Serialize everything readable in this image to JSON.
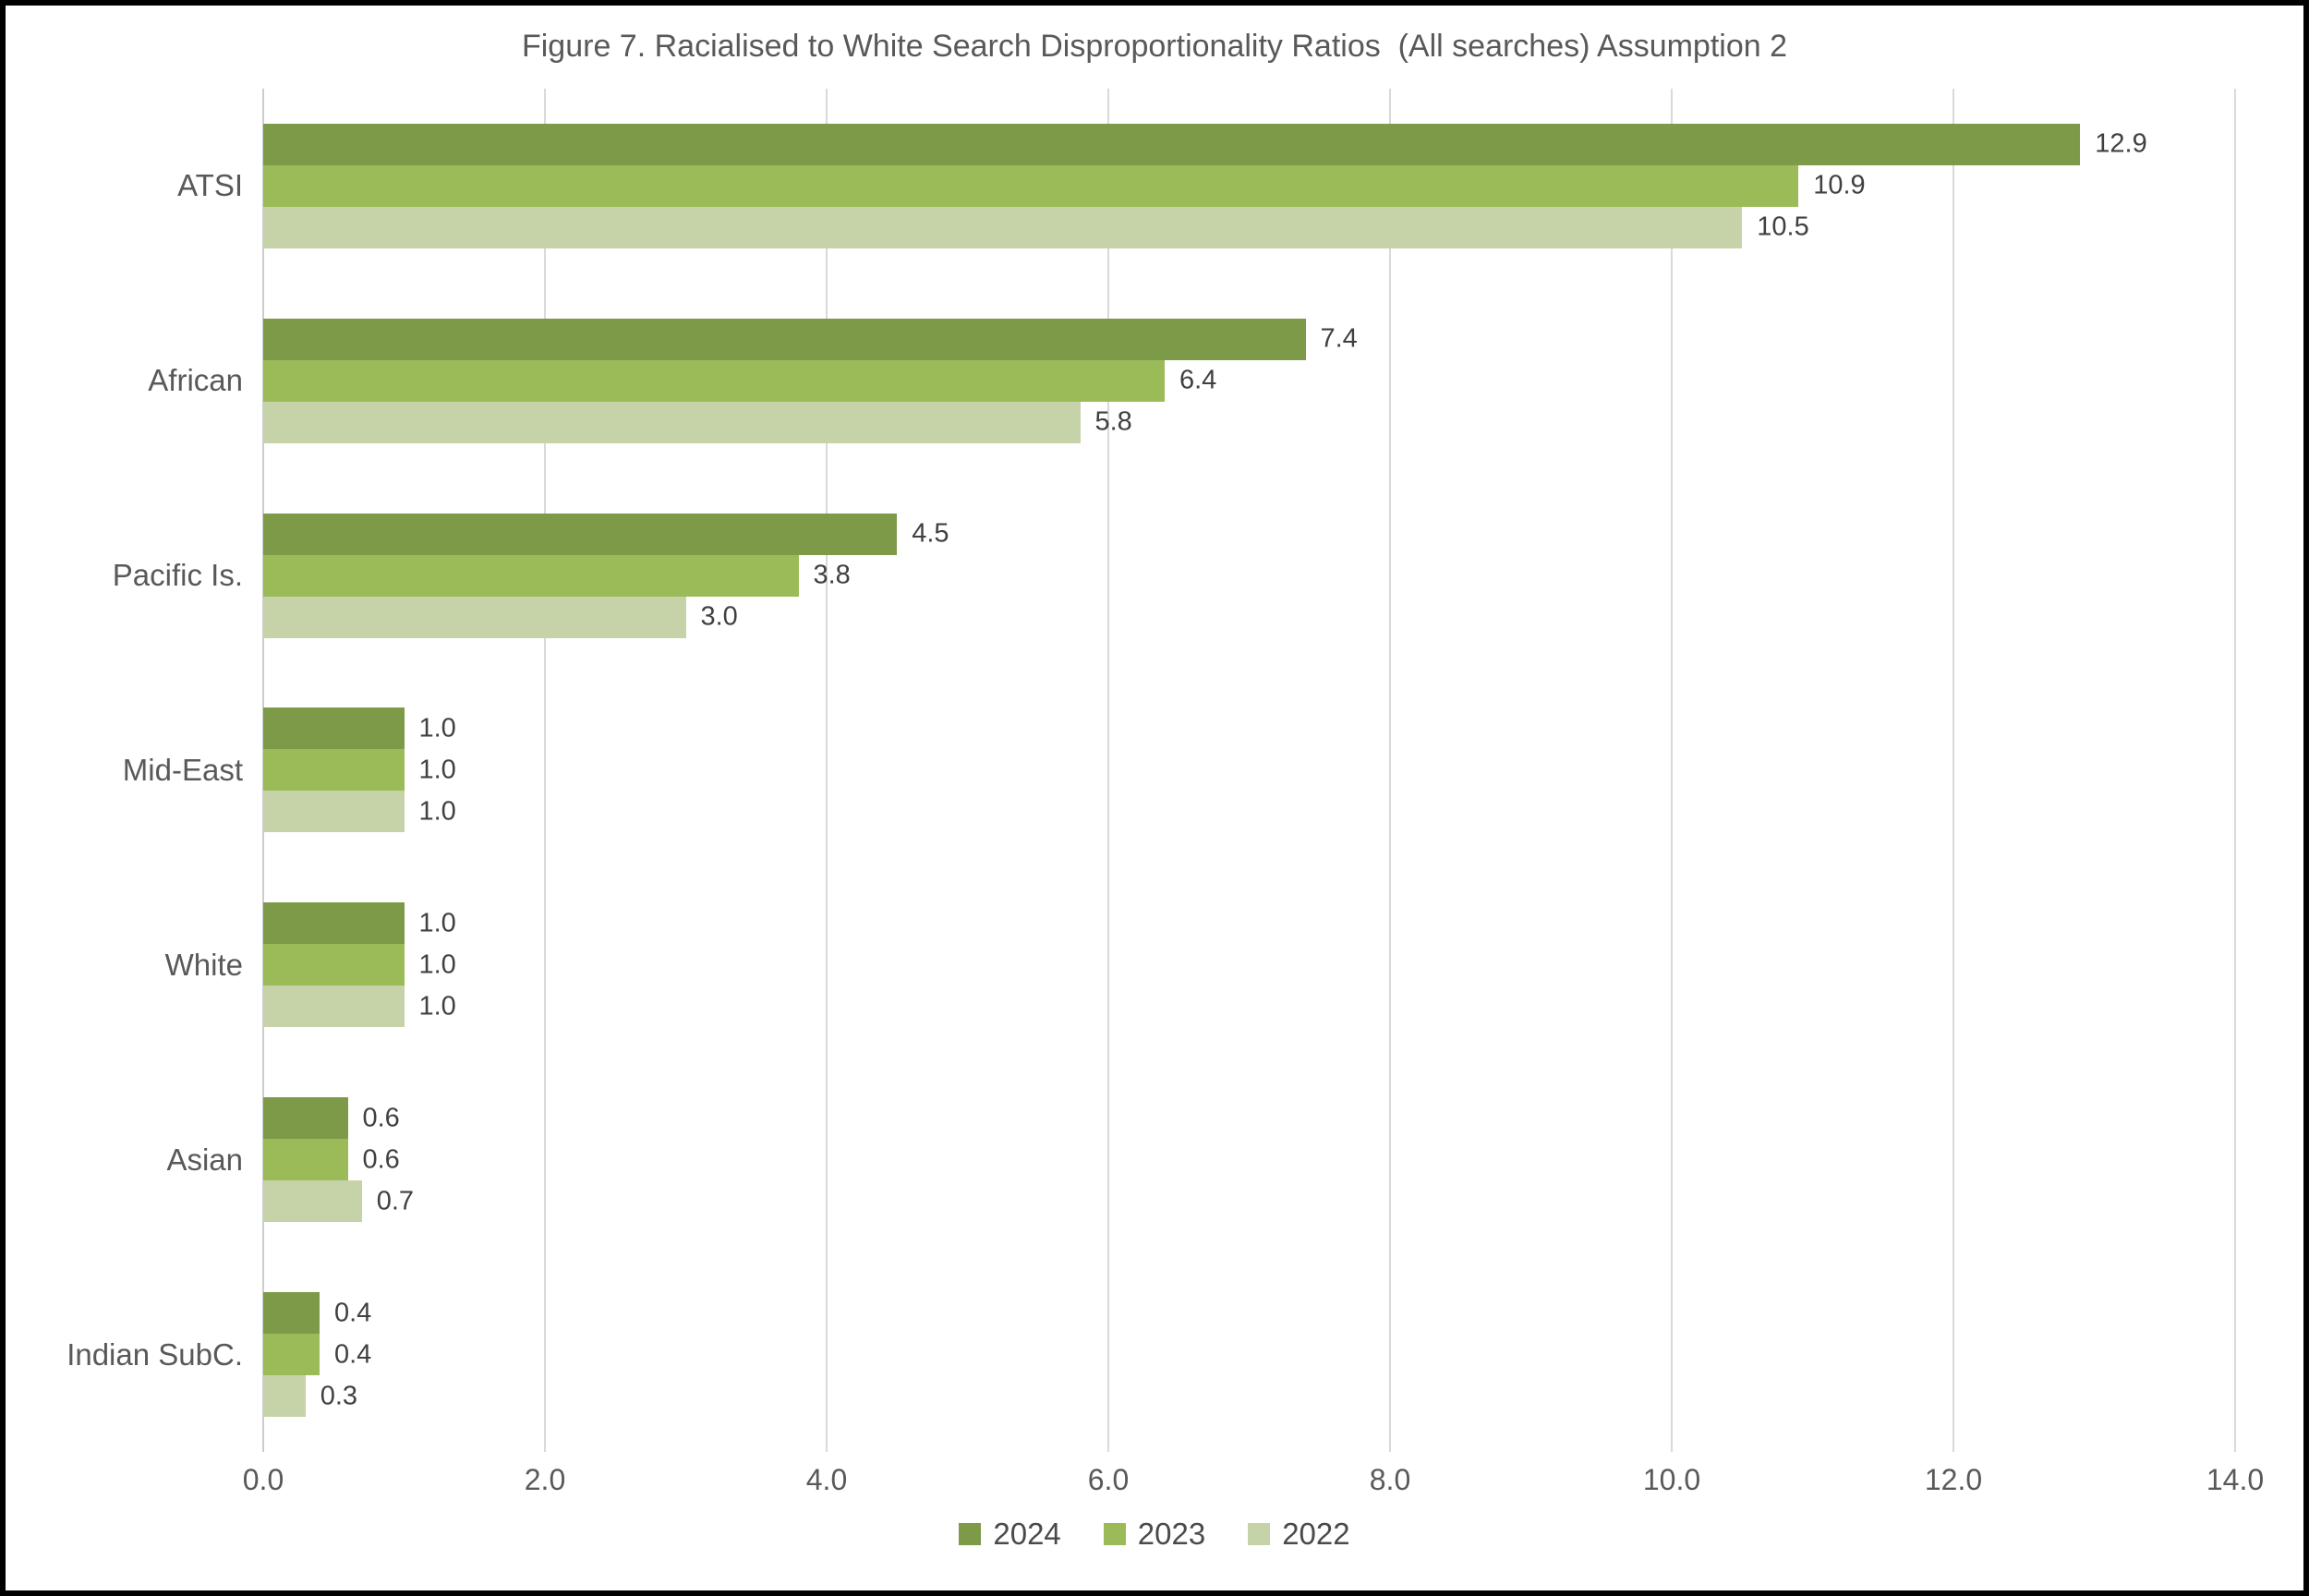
{
  "chart_data": {
    "type": "bar",
    "orientation": "horizontal",
    "title": "Figure 7. Racialised to White Search Disproportionality Ratios  (All searches) Assumption 2",
    "categories": [
      "ATSI",
      "African",
      "Pacific Is.",
      "Mid-East",
      "White",
      "Asian",
      "Indian SubC."
    ],
    "series": [
      {
        "name": "2024",
        "color": "#7D9A48",
        "values": [
          12.9,
          7.4,
          4.5,
          1.0,
          1.0,
          0.6,
          0.4
        ],
        "labels": [
          "12.9",
          "7.4",
          "4.5",
          "1.0",
          "1.0",
          "0.6",
          "0.4"
        ]
      },
      {
        "name": "2023",
        "color": "#9BBB59",
        "values": [
          10.9,
          6.4,
          3.8,
          1.0,
          1.0,
          0.6,
          0.4
        ],
        "labels": [
          "10.9",
          "6.4",
          "3.8",
          "1.0",
          "1.0",
          "0.6",
          "0.4"
        ]
      },
      {
        "name": "2022",
        "color": "#C6D3A8",
        "values": [
          10.5,
          5.8,
          3.0,
          1.0,
          1.0,
          0.7,
          0.3
        ],
        "labels": [
          "10.5",
          "5.8",
          "3.0",
          "1.0",
          "1.0",
          "0.7",
          "0.3"
        ]
      }
    ],
    "x_axis": {
      "min": 0,
      "max": 14,
      "tick_step": 2,
      "tick_labels": [
        "0.0",
        "2.0",
        "4.0",
        "6.0",
        "8.0",
        "10.0",
        "12.0",
        "14.0"
      ]
    },
    "grid": true,
    "legend_position": "bottom",
    "value_labels_shown": true,
    "colors": {
      "gridline": "#D9D9D9",
      "axis_line": "#CCCCCC",
      "title_text": "#595959",
      "tick_text": "#595959",
      "category_text": "#595959",
      "value_text": "#404040",
      "frame_border": "#000000",
      "background": "#FFFFFF"
    }
  }
}
